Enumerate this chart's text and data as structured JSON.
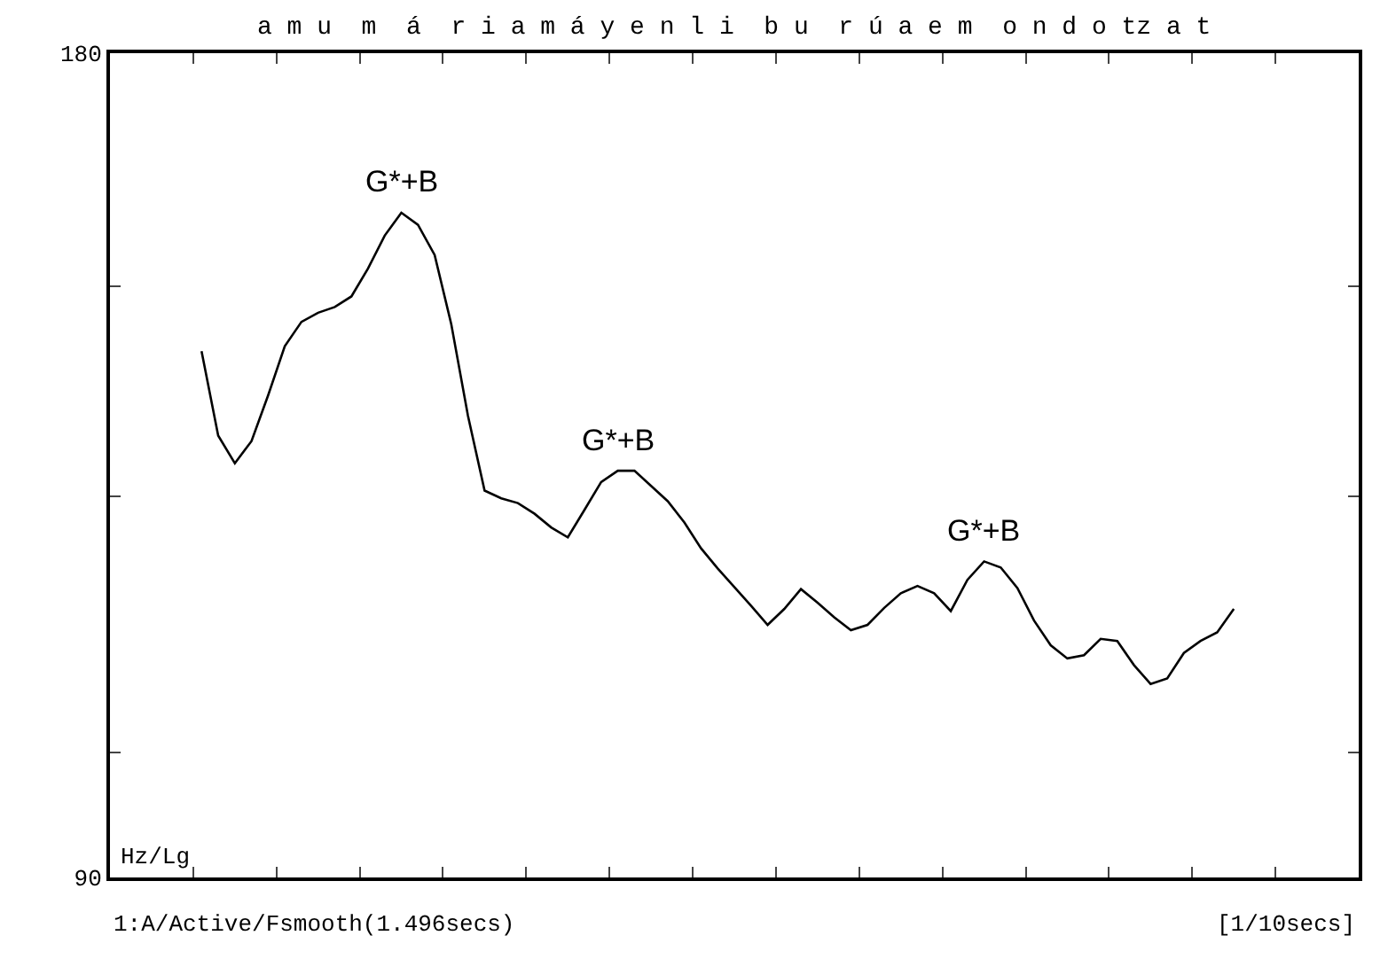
{
  "chart_data": {
    "type": "line",
    "log": "y",
    "marker": "none",
    "line_style": "solid",
    "categories": [
      null,
      null,
      null,
      null,
      null,
      null,
      null,
      null,
      null,
      null,
      null,
      null,
      null,
      null,
      null,
      null,
      null,
      null,
      null,
      null,
      null,
      null,
      null,
      null,
      null,
      null,
      null,
      null,
      null,
      null,
      null,
      null,
      null,
      null,
      null,
      null,
      null,
      null,
      null,
      null,
      null,
      null,
      null,
      null,
      null,
      null,
      null,
      null,
      null,
      null,
      null,
      null,
      null,
      null,
      null,
      null,
      null,
      null,
      null,
      null,
      null,
      null,
      null,
      null,
      null,
      null,
      null,
      null,
      null,
      null,
      null,
      null,
      null,
      null,
      null
    ],
    "series": [
      {
        "color": "#000000",
        "values": [
          null,
          null,
          null,
          null,
          null,
          140.1,
          130.5,
          127.5,
          129.9,
          135.0,
          140.7,
          143.6,
          144.7,
          145.4,
          146.7,
          150.2,
          154.4,
          157.4,
          155.8,
          151.9,
          143.3,
          132.7,
          124.6,
          123.8,
          123.3,
          122.2,
          120.8,
          119.8,
          122.6,
          125.5,
          126.7,
          126.7,
          125.1,
          123.5,
          121.3,
          118.7,
          116.7,
          114.9,
          113.1,
          111.3,
          112.8,
          114.7,
          113.4,
          112.0,
          110.8,
          111.3,
          112.9,
          114.3,
          115.0,
          114.3,
          112.6,
          115.6,
          117.4,
          116.8,
          114.8,
          111.7,
          109.4,
          108.2,
          108.5,
          110.0,
          109.8,
          107.6,
          105.9,
          106.4,
          108.7,
          109.8,
          110.6,
          112.8,
          null,
          null,
          null,
          null,
          null,
          null,
          null
        ]
      }
    ],
    "ylim": [
      90,
      180
    ],
    "yticks": [
      90,
      {
        "value": 100,
        "label": null
      },
      {
        "value": 124,
        "label": null
      },
      {
        "value": 148,
        "label": null
      },
      180
    ],
    "ylabel": "Hz/Lg",
    "annotations": [
      {
        "text": "G*+B",
        "y": 157.4
      },
      {
        "text": "G*+B",
        "y": 126.7
      },
      {
        "text": "G*+B",
        "y": 117.4
      },
      "a m u  m  á  r i a m á y e n l i  b u  r ú a e m  o n d o tz a t",
      "1:A/Active/Fsmooth(1.496secs)",
      "[1/10secs]"
    ]
  }
}
